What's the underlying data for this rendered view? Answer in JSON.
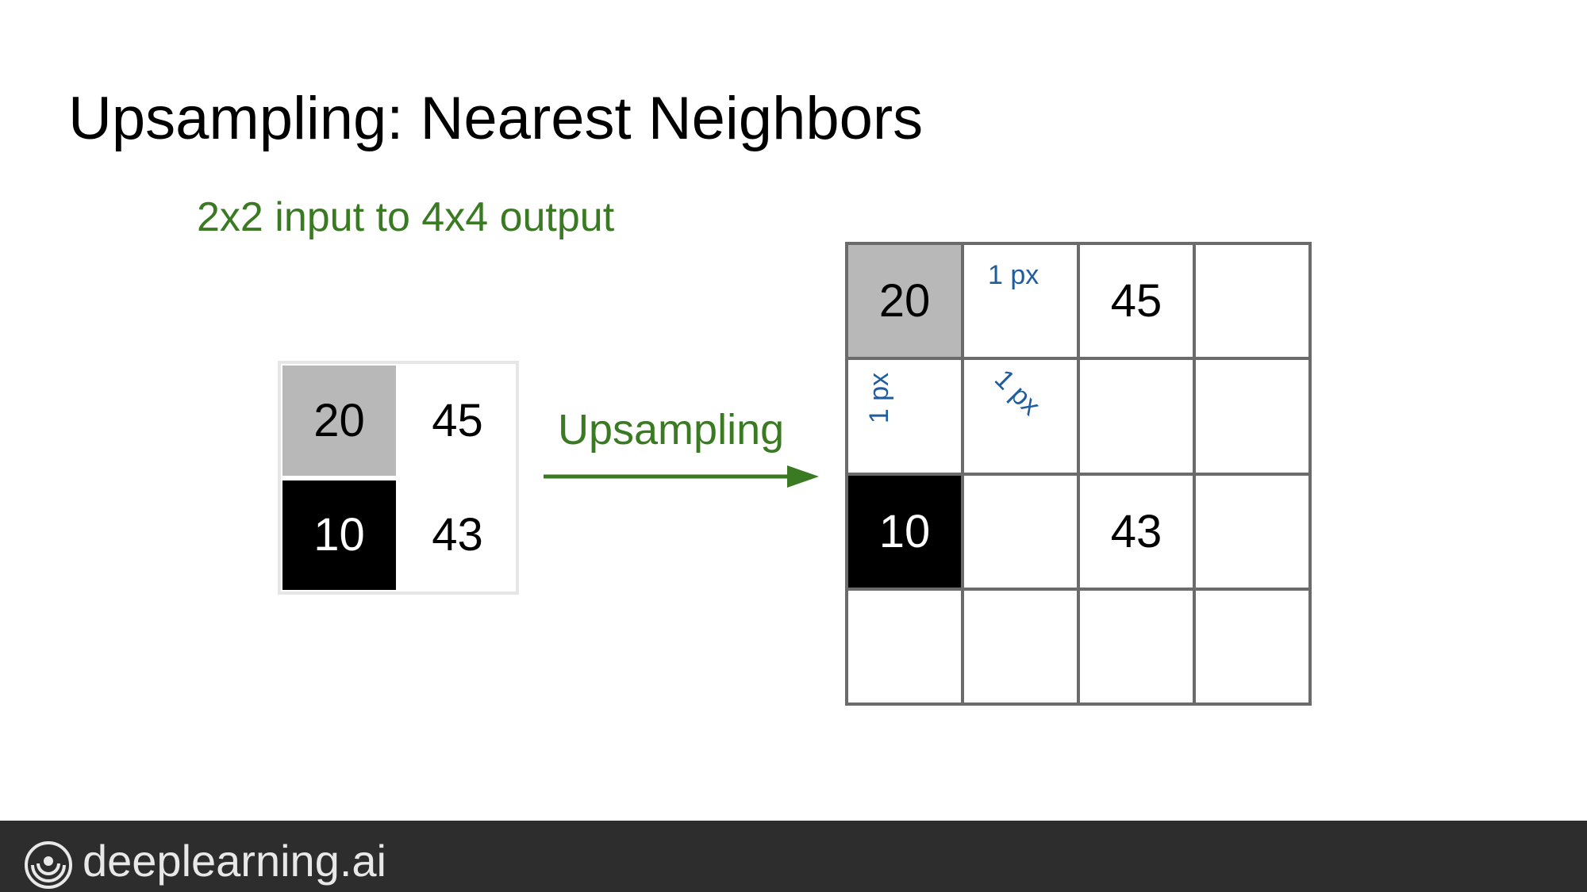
{
  "title": "Upsampling: Nearest Neighbors",
  "subtitle": "2x2 input to 4x4 output",
  "arrow_label": "Upsampling",
  "colors": {
    "green": "#3a7a22",
    "blue": "#1f5d9e",
    "gray_cell": "#b8b8b8",
    "black_cell": "#000000",
    "grid_line": "#6b6b6b",
    "footer_bg": "#2d2d2d"
  },
  "input_grid": [
    [
      {
        "value": "20",
        "fill": "gray"
      },
      {
        "value": "45",
        "fill": "white"
      }
    ],
    [
      {
        "value": "10",
        "fill": "black"
      },
      {
        "value": "43",
        "fill": "white"
      }
    ]
  ],
  "output_grid": [
    [
      {
        "value": "20",
        "fill": "gray"
      },
      {
        "value": "",
        "fill": "white"
      },
      {
        "value": "45",
        "fill": "white"
      },
      {
        "value": "",
        "fill": "white"
      }
    ],
    [
      {
        "value": "",
        "fill": "white"
      },
      {
        "value": "",
        "fill": "white"
      },
      {
        "value": "",
        "fill": "white"
      },
      {
        "value": "",
        "fill": "white"
      }
    ],
    [
      {
        "value": "10",
        "fill": "black"
      },
      {
        "value": "",
        "fill": "white"
      },
      {
        "value": "43",
        "fill": "white"
      },
      {
        "value": "",
        "fill": "white"
      }
    ],
    [
      {
        "value": "",
        "fill": "white"
      },
      {
        "value": "",
        "fill": "white"
      },
      {
        "value": "",
        "fill": "white"
      },
      {
        "value": "",
        "fill": "white"
      }
    ]
  ],
  "distance_labels": {
    "right": "1 px",
    "down": "1 px",
    "diagonal": "1 px"
  },
  "footer": {
    "brand": "deeplearning.ai",
    "logo_icon": "deeplearning-logo-icon"
  }
}
